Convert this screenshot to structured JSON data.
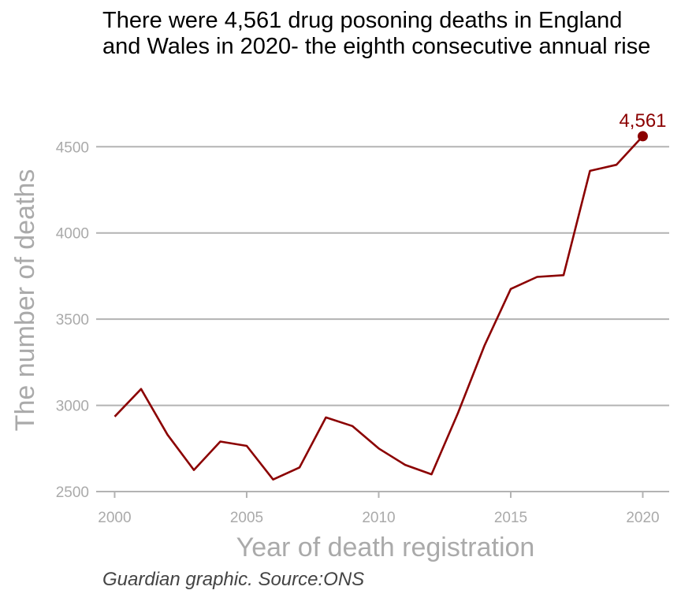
{
  "chart_data": {
    "type": "line",
    "title": "There were 4,561 drug posoning deaths in England and Wales in 2020- the eighth consecutive annual rise",
    "xlabel": "Year of death registration",
    "ylabel": "The number of deaths",
    "caption": "Guardian graphic. Source:ONS",
    "x": [
      2000,
      2001,
      2002,
      2003,
      2004,
      2005,
      2006,
      2007,
      2008,
      2009,
      2010,
      2011,
      2012,
      2013,
      2014,
      2015,
      2016,
      2017,
      2018,
      2019,
      2020
    ],
    "y": [
      2935,
      3095,
      2830,
      2625,
      2790,
      2765,
      2570,
      2640,
      2930,
      2880,
      2750,
      2655,
      2600,
      2955,
      3345,
      3675,
      3745,
      3755,
      4360,
      4395,
      4561
    ],
    "xlim": [
      1999.3,
      2021
    ],
    "ylim": [
      2500,
      4620
    ],
    "xticks": [
      2000,
      2005,
      2010,
      2015,
      2020
    ],
    "yticks": [
      2500,
      3000,
      3500,
      4000,
      4500
    ],
    "grid": "horizontal",
    "annotation": {
      "x": 2020,
      "y": 4561,
      "label": "4,561"
    },
    "colors": {
      "line": "#8b0000",
      "grid": "#b3b3b3",
      "axis_text": "#aaaaaa",
      "title": "#000000",
      "caption": "#444444"
    }
  }
}
